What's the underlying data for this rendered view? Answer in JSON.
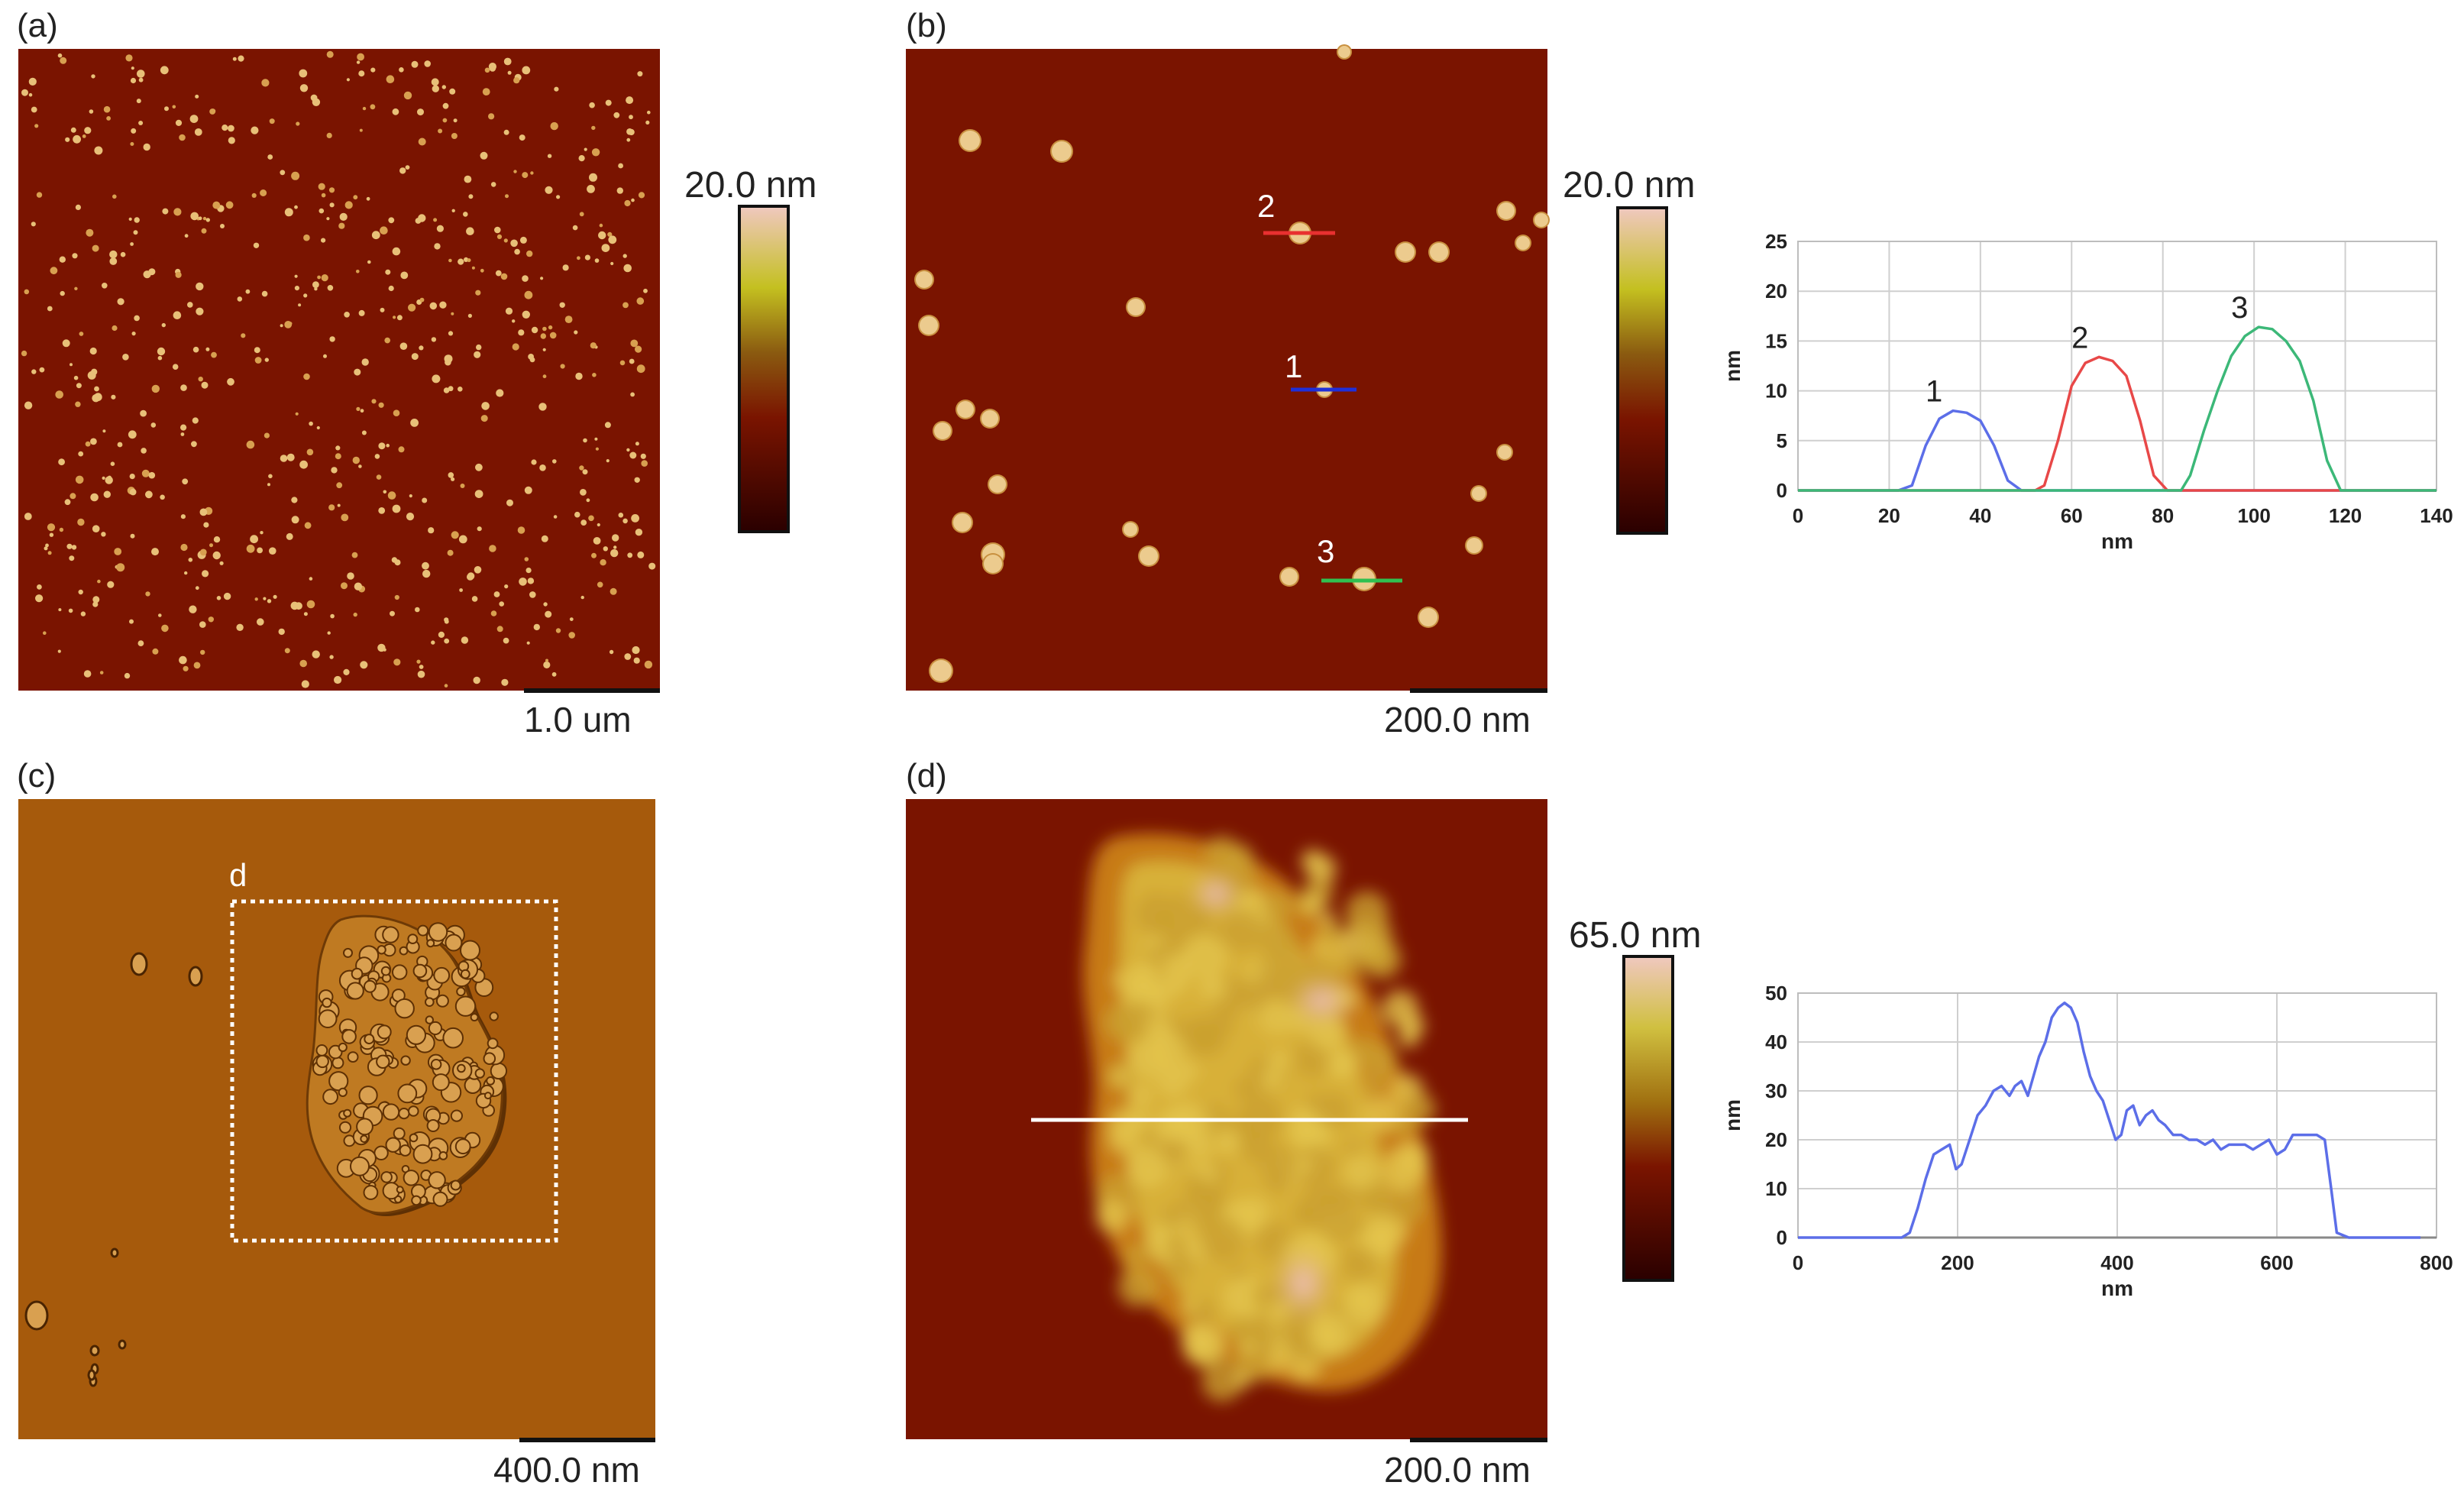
{
  "panels": {
    "a": {
      "label": "(a)",
      "scalebar": "1.0 um",
      "colorbar_max": "20.0 nm"
    },
    "b": {
      "label": "(b)",
      "scalebar": "200.0 nm",
      "colorbar_max": "20.0 nm",
      "profile_markers": [
        "1",
        "2",
        "3"
      ]
    },
    "c": {
      "label": "(c)",
      "scalebar": "400.0 nm",
      "box_label": "d"
    },
    "d": {
      "label": "(d)",
      "scalebar": "200.0 nm",
      "colorbar_max": "65.0 nm"
    }
  },
  "colors": {
    "afm_background": "#7a1400",
    "afm_particle": "#efc98a",
    "amplitude_background": "#a65a0c",
    "series_1": "#5c6ee8",
    "series_2": "#e84848",
    "series_3": "#3cb878",
    "gridline": "#cfcfcf"
  },
  "chart_data": [
    {
      "type": "line",
      "xlabel": "nm",
      "ylabel": "nm",
      "xlim": [
        0,
        140
      ],
      "ylim": [
        0,
        25
      ],
      "xticks": [
        0,
        20,
        40,
        60,
        80,
        100,
        120,
        140
      ],
      "yticks": [
        0,
        5,
        10,
        15,
        20,
        25
      ],
      "grid": true,
      "series": [
        {
          "name": "1",
          "x": [
            0,
            22,
            25,
            28,
            31,
            34,
            37,
            40,
            43,
            46,
            49,
            52,
            140
          ],
          "y": [
            0,
            0,
            0.5,
            4.5,
            7.2,
            8.0,
            7.8,
            7.0,
            4.5,
            1.0,
            0,
            0,
            0
          ]
        },
        {
          "name": "2",
          "x": [
            0,
            52,
            54,
            57,
            60,
            63,
            66,
            69,
            72,
            75,
            78,
            81,
            140
          ],
          "y": [
            0,
            0,
            0.5,
            5.0,
            10.5,
            12.8,
            13.4,
            13.0,
            11.5,
            7.0,
            1.5,
            0,
            0
          ]
        },
        {
          "name": "3",
          "x": [
            0,
            84,
            86,
            89,
            92,
            95,
            98,
            101,
            104,
            107,
            110,
            113,
            116,
            119,
            140
          ],
          "y": [
            0,
            0,
            1.5,
            6.0,
            10.0,
            13.5,
            15.5,
            16.4,
            16.2,
            15.0,
            13.0,
            9.0,
            3.0,
            0,
            0
          ]
        }
      ]
    },
    {
      "type": "line",
      "xlabel": "nm",
      "ylabel": "nm",
      "xlim": [
        0,
        800
      ],
      "ylim": [
        0,
        50
      ],
      "xticks": [
        0,
        200,
        400,
        600,
        800
      ],
      "yticks": [
        0,
        10,
        20,
        30,
        40,
        50
      ],
      "grid": true,
      "series": [
        {
          "name": "",
          "x": [
            0,
            130,
            140,
            150,
            160,
            170,
            180,
            190,
            198,
            205,
            215,
            225,
            235,
            245,
            255,
            265,
            272,
            280,
            288,
            295,
            302,
            310,
            318,
            326,
            334,
            342,
            350,
            358,
            366,
            374,
            382,
            390,
            398,
            405,
            412,
            420,
            428,
            436,
            444,
            452,
            460,
            470,
            480,
            490,
            500,
            510,
            520,
            530,
            540,
            550,
            560,
            570,
            580,
            590,
            600,
            610,
            620,
            630,
            640,
            650,
            660,
            668,
            675,
            690,
            780
          ],
          "y": [
            0,
            0,
            1,
            6,
            12,
            17,
            18,
            19,
            14,
            15,
            20,
            25,
            27,
            30,
            31,
            29,
            31,
            32,
            29,
            33,
            37,
            40,
            45,
            47,
            48,
            47,
            44,
            38,
            33,
            30,
            28,
            24,
            20,
            21,
            26,
            27,
            23,
            25,
            26,
            24,
            23,
            21,
            21,
            20,
            20,
            19,
            20,
            18,
            19,
            19,
            19,
            18,
            19,
            20,
            17,
            18,
            21,
            21,
            21,
            21,
            20,
            10,
            1,
            0,
            0
          ]
        }
      ]
    }
  ]
}
